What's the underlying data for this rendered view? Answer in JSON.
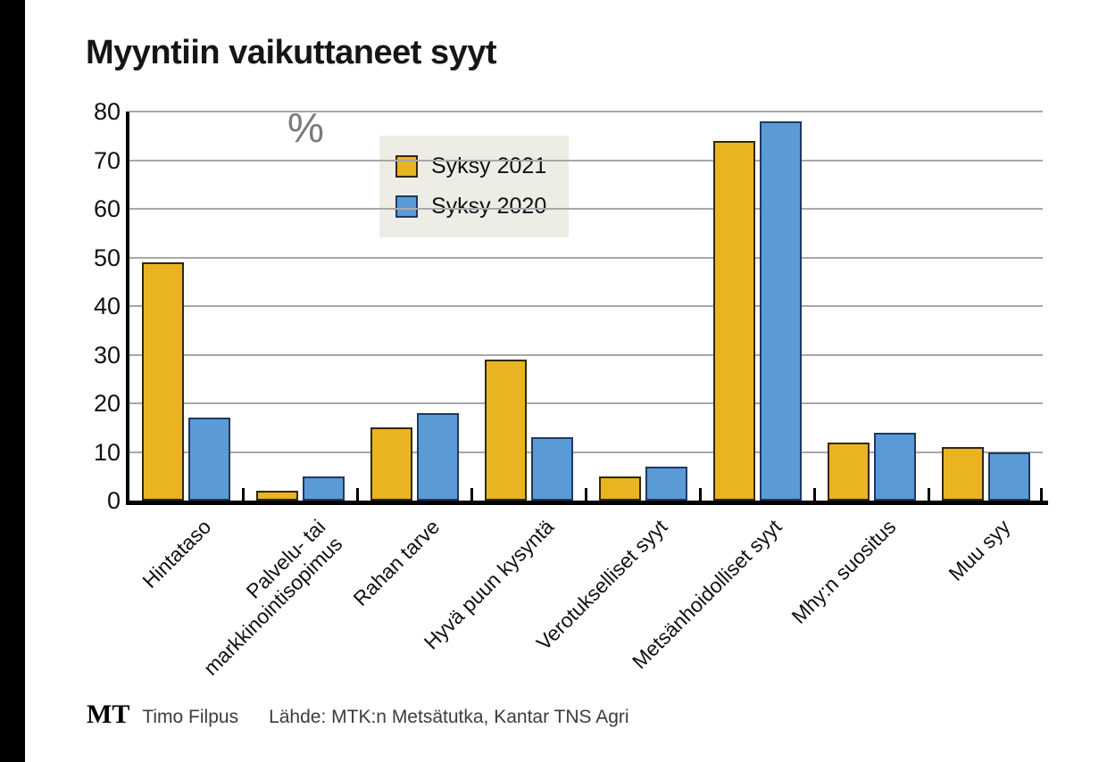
{
  "title": "Myyntiin vaikuttaneet syyt",
  "unit_label": "%",
  "footer": {
    "logo": "MT",
    "author": "Timo Filpus",
    "source": "Lähde: MTK:n Metsätutka, Kantar TNS Agri"
  },
  "colors": {
    "yellow": "#E9B421",
    "yellow_border": "#332809",
    "blue": "#5B9BD5",
    "blue_border": "#1F3864",
    "gridline": "#A8A8A8",
    "axis": "#000000",
    "legend_bg": "#EDEDE5",
    "unit_label_gray": "#7a7a7a"
  },
  "chart_data": {
    "type": "bar",
    "title": "Myyntiin vaikuttaneet syyt",
    "xlabel": "",
    "ylabel": "%",
    "ylim": [
      0,
      80
    ],
    "ytick_step": 10,
    "yticks": [
      0,
      10,
      20,
      30,
      40,
      50,
      60,
      70,
      80
    ],
    "grid": true,
    "legend_position": "top-center",
    "categories": [
      "Hintataso",
      "Palvelu- tai\nmarkkinointisopimus",
      "Rahan tarve",
      "Hyvä puun kysyntä",
      "Verotukselliset syyt",
      "Metsänhoidolliset syyt",
      "Mhy:n suositus",
      "Muu syy"
    ],
    "series": [
      {
        "name": "Syksy 2021",
        "color": "#E9B421",
        "border": "#332809",
        "values": [
          49,
          2,
          15,
          29,
          5,
          74,
          12,
          11
        ]
      },
      {
        "name": "Syksy 2020",
        "color": "#5B9BD5",
        "border": "#1F3864",
        "values": [
          17,
          5,
          18,
          13,
          7,
          78,
          14,
          10
        ]
      }
    ]
  }
}
